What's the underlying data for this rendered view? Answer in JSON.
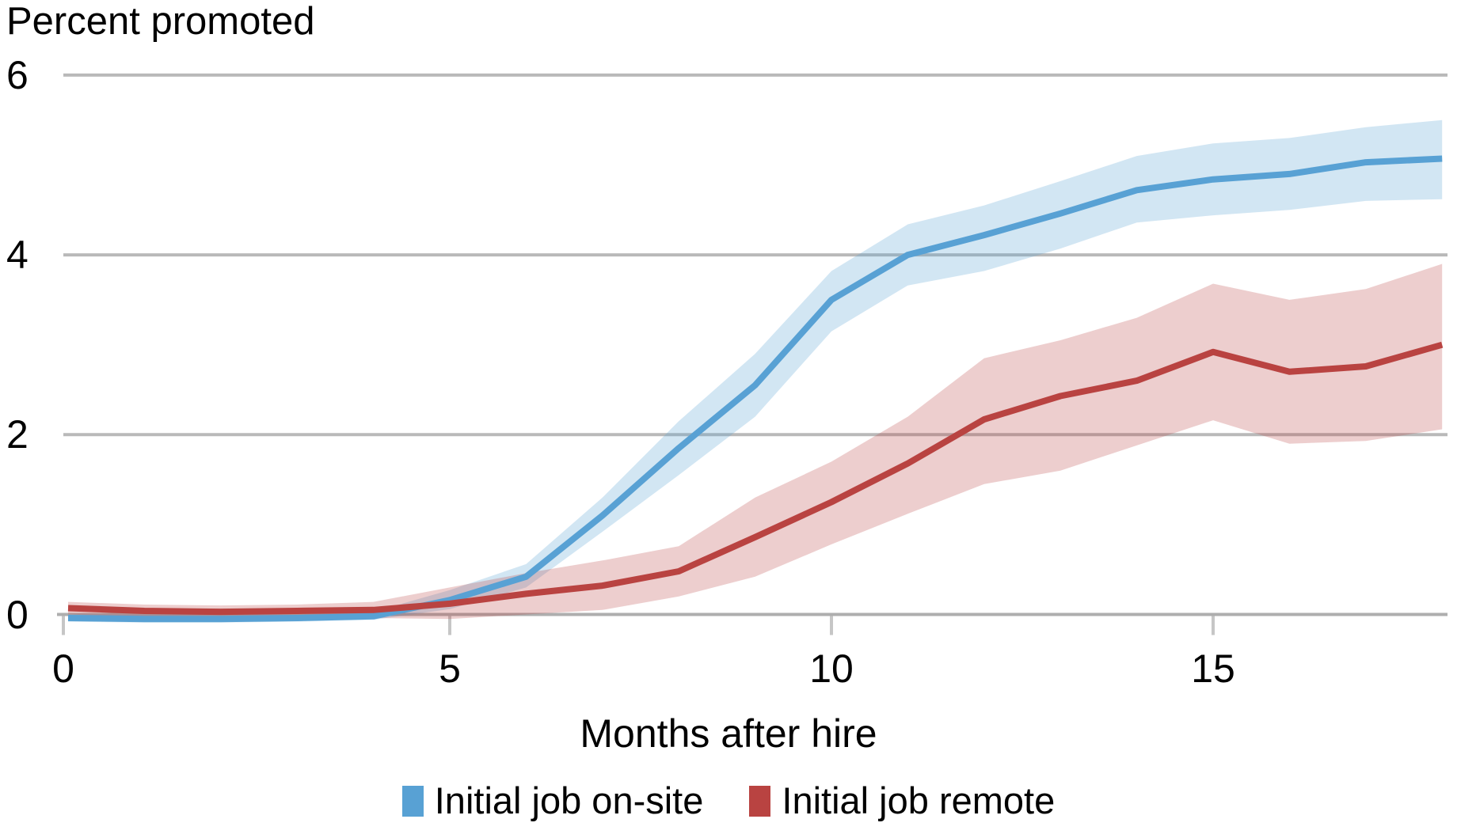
{
  "title": "Percent promoted",
  "chart_data": {
    "type": "line",
    "title": "Percent promoted",
    "ylabel": "Percent promoted",
    "xlabel": "Months after hire",
    "x_range": [
      0,
      18
    ],
    "y_range": [
      -0.35,
      6.2
    ],
    "grid": "horizontal",
    "legend_position": "bottom",
    "gridline_color": "#b9b9b9",
    "axis_color": "#aeaeae",
    "tick_color": "#c6c6c6",
    "yticks": [
      6,
      4,
      2,
      0
    ],
    "ytick_labels": [
      "6",
      "4",
      "2",
      "0"
    ],
    "xticks": [
      0,
      5,
      10,
      15
    ],
    "xtick_labels": [
      "0",
      "5",
      "10",
      "15"
    ],
    "x": [
      0,
      1,
      2,
      3,
      4,
      5,
      6,
      7,
      8,
      9,
      10,
      11,
      12,
      13,
      14,
      15,
      16,
      17,
      18
    ],
    "series": [
      {
        "name": "Initial job on-site",
        "color": "#58a1d4",
        "band_color": "rgba(88,161,212,0.27)",
        "values": [
          -0.04,
          -0.05,
          -0.05,
          -0.04,
          -0.02,
          0.16,
          0.42,
          1.1,
          1.85,
          2.55,
          3.5,
          4.0,
          4.22,
          4.46,
          4.72,
          4.84,
          4.9,
          5.03,
          5.07
        ],
        "lower": [
          -0.08,
          -0.09,
          -0.09,
          -0.08,
          -0.06,
          0.06,
          0.3,
          0.92,
          1.55,
          2.2,
          3.15,
          3.66,
          3.82,
          4.07,
          4.36,
          4.44,
          4.5,
          4.6,
          4.62
        ],
        "upper": [
          0.0,
          0.0,
          0.0,
          0.0,
          0.03,
          0.27,
          0.56,
          1.3,
          2.15,
          2.9,
          3.82,
          4.34,
          4.55,
          4.82,
          5.1,
          5.24,
          5.3,
          5.42,
          5.5
        ]
      },
      {
        "name": "Initial job remote",
        "color": "#b94341",
        "band_color": "rgba(185,67,65,0.26)",
        "values": [
          0.07,
          0.04,
          0.03,
          0.04,
          0.05,
          0.12,
          0.23,
          0.32,
          0.48,
          0.86,
          1.25,
          1.68,
          2.17,
          2.43,
          2.6,
          2.92,
          2.7,
          2.76,
          3.0
        ],
        "lower": [
          0.0,
          -0.03,
          -0.04,
          -0.03,
          -0.04,
          -0.05,
          0.0,
          0.05,
          0.2,
          0.42,
          0.78,
          1.12,
          1.45,
          1.6,
          1.88,
          2.16,
          1.9,
          1.93,
          2.06
        ],
        "upper": [
          0.14,
          0.11,
          0.1,
          0.11,
          0.14,
          0.3,
          0.46,
          0.6,
          0.76,
          1.3,
          1.7,
          2.2,
          2.85,
          3.05,
          3.3,
          3.68,
          3.5,
          3.62,
          3.9
        ]
      }
    ]
  }
}
